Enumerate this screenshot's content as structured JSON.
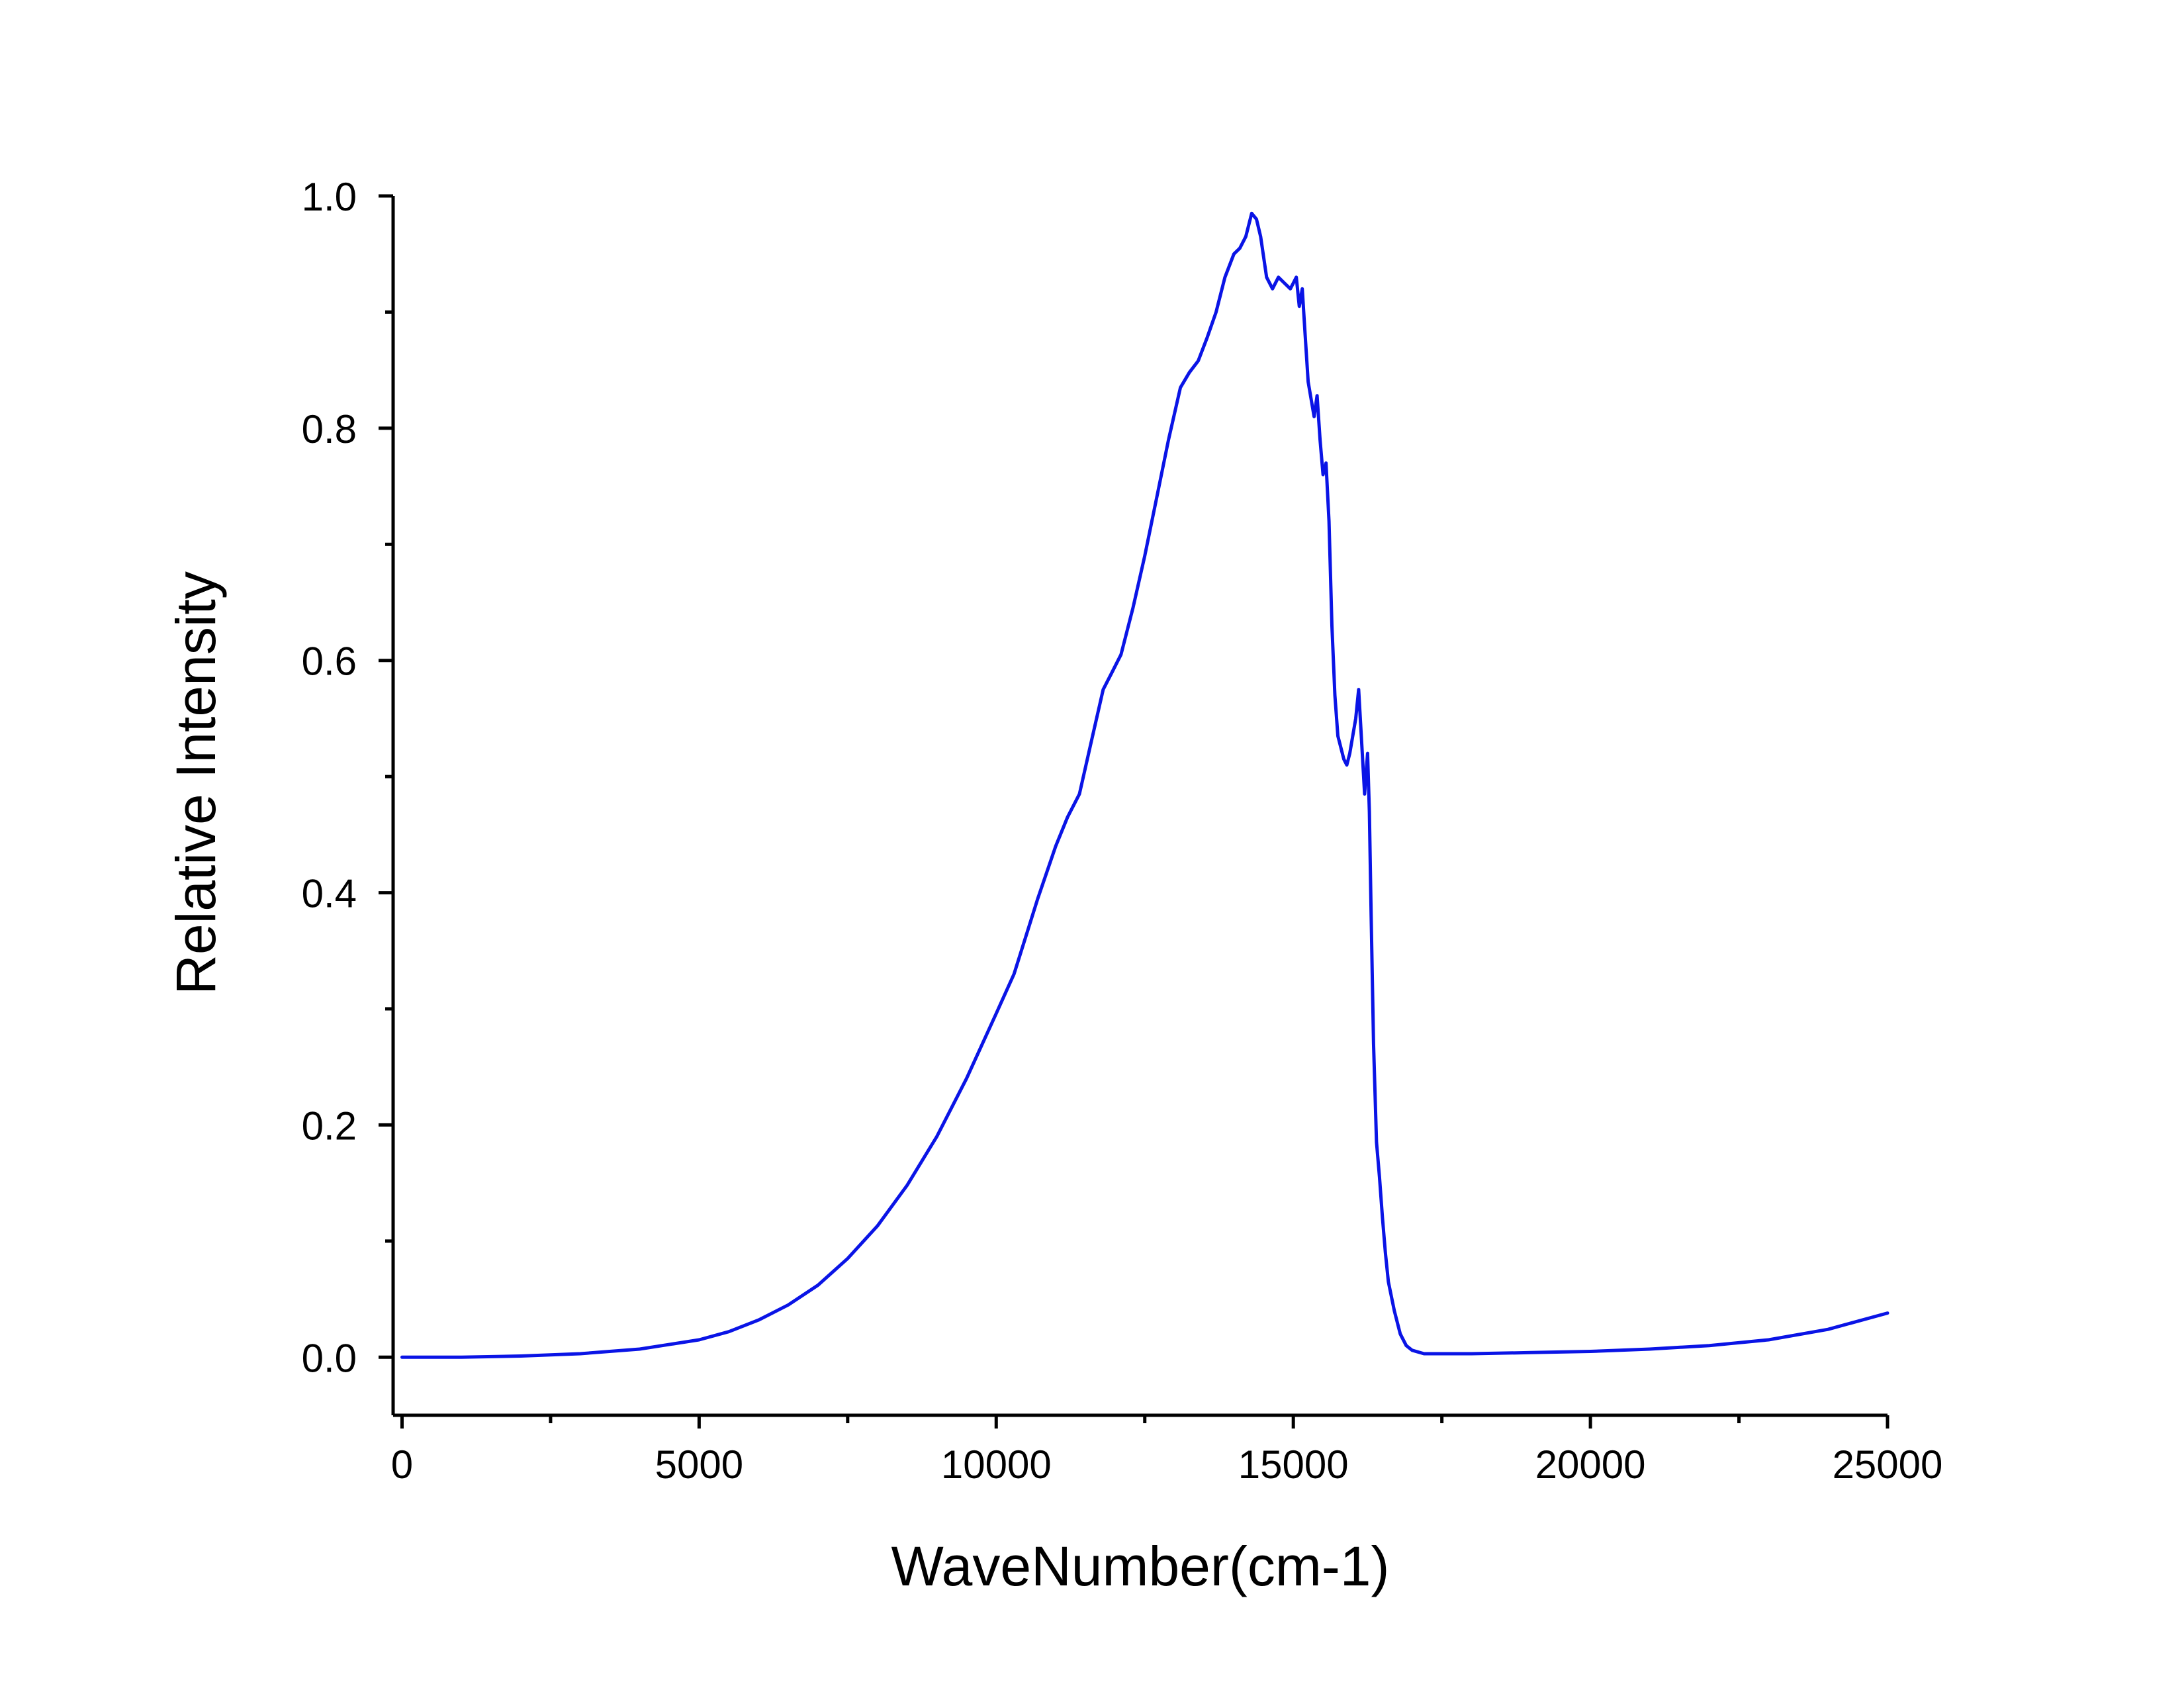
{
  "chart_data": {
    "type": "line",
    "title": "",
    "xlabel": "WaveNumber(cm-1)",
    "ylabel": "Relative Intensity",
    "xlim": [
      -150,
      25000
    ],
    "ylim": [
      -0.05,
      1.0
    ],
    "grid": false,
    "legend": "none",
    "line_color": "#0a14e6",
    "x_ticks": [
      0,
      5000,
      10000,
      15000,
      20000,
      25000
    ],
    "x_tick_labels": [
      "0",
      "5000",
      "10000",
      "15000",
      "20000",
      "25000"
    ],
    "x_minor_ticks": [
      2500,
      7500,
      12500,
      17500,
      22500
    ],
    "y_ticks": [
      0.0,
      0.2,
      0.4,
      0.6,
      0.8,
      1.0
    ],
    "y_tick_labels": [
      "0.0",
      "0.2",
      "0.4",
      "0.6",
      "0.8",
      "1.0"
    ],
    "y_minor_ticks": [
      0.1,
      0.3,
      0.5,
      0.7,
      0.9
    ],
    "series": [
      {
        "x": [
          0,
          1000,
          2000,
          3000,
          4000,
          5000,
          5500,
          6000,
          6500,
          7000,
          7500,
          8000,
          8500,
          9000,
          9500,
          10000,
          10300,
          10700,
          11000,
          11200,
          11400,
          11600,
          11800,
          11950,
          12100,
          12300,
          12500,
          12700,
          12900,
          13100,
          13250,
          13400,
          13550,
          13700,
          13850,
          14000,
          14100,
          14200,
          14300,
          14380,
          14450,
          14550,
          14650,
          14750,
          14850,
          14950,
          15000,
          15050,
          15100,
          15150,
          15200,
          15250,
          15300,
          15350,
          15400,
          15450,
          15500,
          15550,
          15600,
          15650,
          15700,
          15750,
          15800,
          15850,
          15900,
          15950,
          16000,
          16050,
          16100,
          16150,
          16200,
          16250,
          16280,
          16310,
          16350,
          16400,
          16450,
          16500,
          16550,
          16600,
          16700,
          16800,
          16900,
          17000,
          17200,
          17500,
          18000,
          19000,
          20000,
          21000,
          22000,
          23000,
          24000,
          25000
        ],
        "values": [
          0.0,
          0.0,
          0.001,
          0.003,
          0.007,
          0.015,
          0.022,
          0.032,
          0.045,
          0.062,
          0.085,
          0.113,
          0.148,
          0.19,
          0.24,
          0.296,
          0.33,
          0.395,
          0.44,
          0.465,
          0.485,
          0.53,
          0.575,
          0.59,
          0.605,
          0.645,
          0.69,
          0.74,
          0.79,
          0.835,
          0.848,
          0.858,
          0.878,
          0.9,
          0.93,
          0.95,
          0.955,
          0.965,
          0.985,
          0.98,
          0.965,
          0.93,
          0.92,
          0.93,
          0.925,
          0.92,
          0.925,
          0.93,
          0.905,
          0.92,
          0.88,
          0.84,
          0.825,
          0.81,
          0.828,
          0.79,
          0.76,
          0.77,
          0.72,
          0.63,
          0.57,
          0.535,
          0.525,
          0.515,
          0.51,
          0.52,
          0.535,
          0.55,
          0.575,
          0.53,
          0.485,
          0.52,
          0.47,
          0.38,
          0.27,
          0.185,
          0.155,
          0.12,
          0.09,
          0.065,
          0.04,
          0.02,
          0.01,
          0.006,
          0.003,
          0.003,
          0.003,
          0.004,
          0.005,
          0.007,
          0.01,
          0.015,
          0.024,
          0.038
        ]
      }
    ]
  }
}
